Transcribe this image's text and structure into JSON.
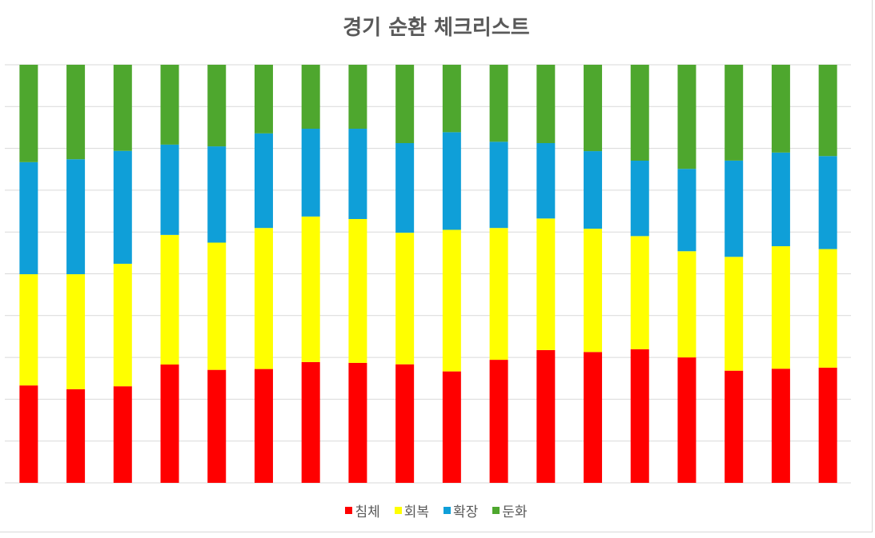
{
  "chart_data": {
    "type": "bar",
    "stacked": "percent",
    "title": "경기 순환 체크리스트",
    "categories": [
      "",
      "",
      "",
      "",
      "",
      "",
      "",
      "",
      "",
      "",
      "",
      "",
      "",
      "",
      "",
      "",
      "",
      ""
    ],
    "ylim": [
      0,
      100
    ],
    "grid": true,
    "legend_position": "bottom",
    "series": [
      {
        "name": "침체",
        "color": "#ff0000",
        "values": [
          23.3,
          22.4,
          23.1,
          28.3,
          27.0,
          27.2,
          28.9,
          28.7,
          28.3,
          26.6,
          29.4,
          31.7,
          31.2,
          31.9,
          30.0,
          26.8,
          27.3,
          27.5
        ]
      },
      {
        "name": "회복",
        "color": "#ffff00",
        "values": [
          26.6,
          27.5,
          29.3,
          31.0,
          30.4,
          33.7,
          34.8,
          34.4,
          31.4,
          33.8,
          31.5,
          31.4,
          29.4,
          27.0,
          25.4,
          27.2,
          29.3,
          28.3
        ]
      },
      {
        "name": "확장",
        "color": "#0f9fd8",
        "values": [
          26.8,
          27.5,
          27.0,
          21.6,
          23.0,
          22.6,
          21.0,
          21.6,
          21.4,
          23.3,
          20.6,
          18.0,
          18.5,
          18.0,
          19.7,
          23.0,
          22.4,
          22.2
        ]
      },
      {
        "name": "둔화",
        "color": "#4ea72e",
        "values": [
          23.3,
          22.6,
          20.6,
          19.1,
          19.5,
          16.4,
          15.3,
          15.3,
          18.7,
          16.1,
          18.4,
          18.7,
          20.6,
          22.9,
          24.9,
          22.9,
          21.0,
          21.8
        ]
      }
    ]
  }
}
